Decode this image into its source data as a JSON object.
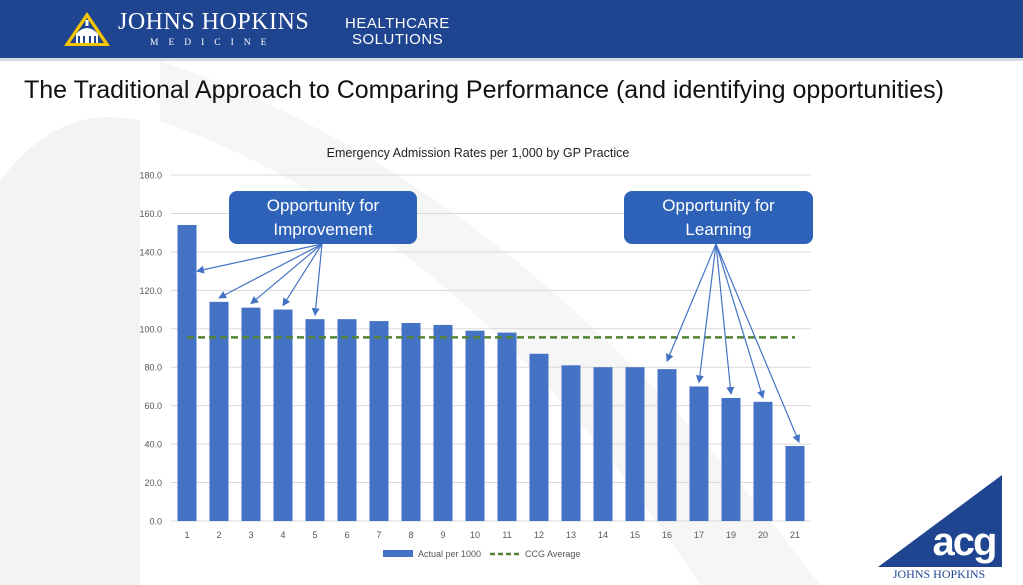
{
  "header": {
    "org_name": "JOHNS HOPKINS",
    "org_sub": "MEDICINE",
    "unit_line1": "HEALTHCARE",
    "unit_line2": "SOLUTIONS",
    "background": "#1f4490"
  },
  "slide": {
    "title": "The Traditional Approach to Comparing Performance (and identifying opportunities)"
  },
  "callouts": {
    "improvement": {
      "line1": "Opportunity for",
      "line2": "Improvement"
    },
    "learning": {
      "line1": "Opportunity for",
      "line2": "Learning"
    }
  },
  "footer_logo": {
    "mark": "acg",
    "caption": "JOHNS HOPKINS"
  },
  "chart_data": {
    "type": "bar",
    "title": "Emergency Admission Rates per 1,000 by GP Practice",
    "xlabel": "",
    "ylabel": "",
    "categories": [
      "1",
      "2",
      "3",
      "4",
      "5",
      "6",
      "7",
      "8",
      "9",
      "10",
      "11",
      "12",
      "13",
      "14",
      "15",
      "16",
      "17",
      "19",
      "20",
      "21"
    ],
    "series": [
      {
        "name": "Actual per 1000",
        "values": [
          154,
          114,
          111,
          110,
          105,
          105,
          104,
          103,
          102,
          99,
          98,
          87,
          81,
          80,
          80,
          79,
          70,
          64,
          62,
          39
        ],
        "color": "#4472c4"
      }
    ],
    "reference_lines": [
      {
        "name": "CCG Average",
        "value": 95.5,
        "style": "dashed",
        "color": "#548235"
      }
    ],
    "ylim": [
      0,
      180
    ],
    "yticks": [
      "0.0",
      "20.0",
      "40.0",
      "60.0",
      "80.0",
      "100.0",
      "120.0",
      "140.0",
      "160.0",
      "180.0"
    ],
    "grid": true,
    "legend": "bottom"
  }
}
